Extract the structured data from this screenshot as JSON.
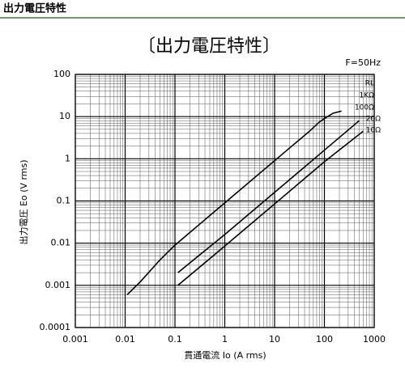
{
  "header": {
    "title": "出力電圧特性"
  },
  "chart_data": {
    "type": "line",
    "title": "〔出力電圧特性〕",
    "x_label": "貫通電流 Io (A rms)",
    "y_label": "出力電圧 Eo (V rms)",
    "log_x": true,
    "log_y": true,
    "grid": true,
    "xlim": [
      0.001,
      1000
    ],
    "ylim": [
      0.0001,
      100
    ],
    "xticks": [
      0.001,
      0.01,
      0.1,
      1,
      10,
      100,
      1000
    ],
    "yticks": [
      0.0001,
      0.001,
      0.01,
      0.1,
      1,
      10,
      100
    ],
    "annotations": [
      "F=50Hz",
      "RL",
      "1KΩ",
      "100Ω",
      "20Ω",
      "10Ω"
    ],
    "series": [
      {
        "color": "#000000",
        "x": [
          0.011,
          0.02,
          0.05,
          0.1,
          1,
          10,
          50,
          80,
          100,
          150,
          220
        ],
        "values": [
          0.0006,
          0.0012,
          0.004,
          0.009,
          0.09,
          0.9,
          4.5,
          7.5,
          9,
          12,
          13.5
        ]
      },
      {
        "color": "#000000",
        "x": [
          0.115,
          1,
          10,
          100,
          500
        ],
        "values": [
          0.002,
          0.016,
          0.16,
          1.6,
          8
        ]
      },
      {
        "color": "#000000",
        "x": [
          0.115,
          1,
          10,
          100,
          600
        ],
        "values": [
          0.001,
          0.0085,
          0.085,
          0.85,
          4.5
        ]
      }
    ]
  }
}
